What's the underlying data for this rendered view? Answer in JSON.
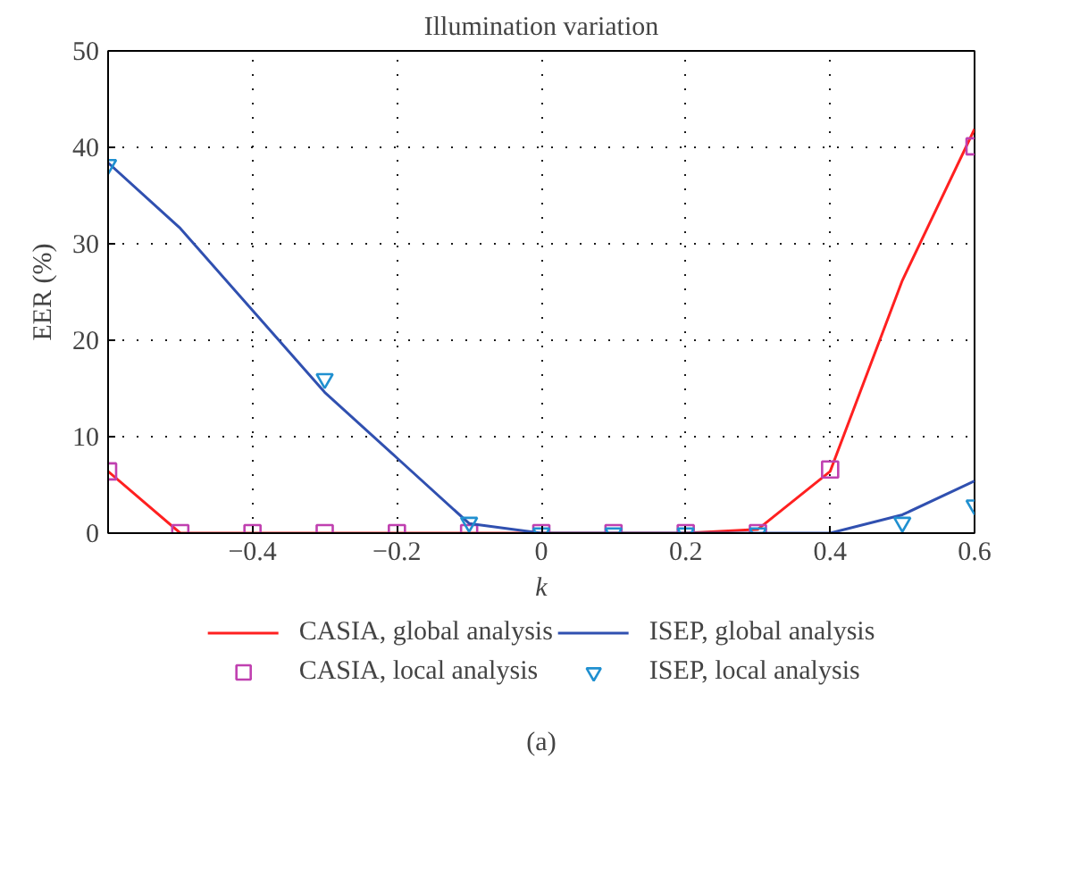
{
  "chart_data": {
    "type": "line",
    "title": "Illumination variation",
    "xlabel": "k",
    "ylabel": "EER (%)",
    "x": [
      -0.6,
      -0.5,
      -0.4,
      -0.3,
      -0.2,
      -0.1,
      0,
      0.1,
      0.2,
      0.3,
      0.4,
      0.5,
      0.6
    ],
    "series": [
      {
        "name": "CASIA, global analysis",
        "color": "#ff2020",
        "values": [
          6.4,
          0,
          0,
          0,
          0,
          0,
          0,
          0,
          0,
          0.4,
          6.4,
          26.2,
          41.9
        ]
      },
      {
        "name": "CASIA, local analysis",
        "type": "scatter",
        "marker": "square",
        "color": "#c040b0",
        "values": [
          6.4,
          0,
          0,
          0,
          0,
          0,
          0,
          0,
          0,
          0,
          6.6,
          null,
          40.1
        ]
      },
      {
        "name": "ISEP, global analysis",
        "color": "#3050b0",
        "values": [
          38.4,
          31.6,
          23.1,
          14.6,
          7.8,
          1.0,
          0,
          0,
          0,
          0,
          0,
          1.9,
          5.4
        ]
      },
      {
        "name": "ISEP, local analysis",
        "type": "scatter",
        "marker": "triangle",
        "color": "#2090d0",
        "values": [
          38.2,
          null,
          null,
          16.0,
          null,
          1.1,
          0,
          0,
          0,
          0,
          null,
          1.1,
          2.9
        ]
      }
    ],
    "xlim": [
      -0.6,
      0.6
    ],
    "xticks": [
      -0.4,
      -0.2,
      0,
      0.2,
      0.4,
      0.6
    ],
    "ylim": [
      0,
      50
    ],
    "yticks": [
      0,
      10,
      20,
      30,
      40,
      50
    ],
    "grid": true,
    "legend": "bottom",
    "annotations": [
      "(a)"
    ]
  }
}
